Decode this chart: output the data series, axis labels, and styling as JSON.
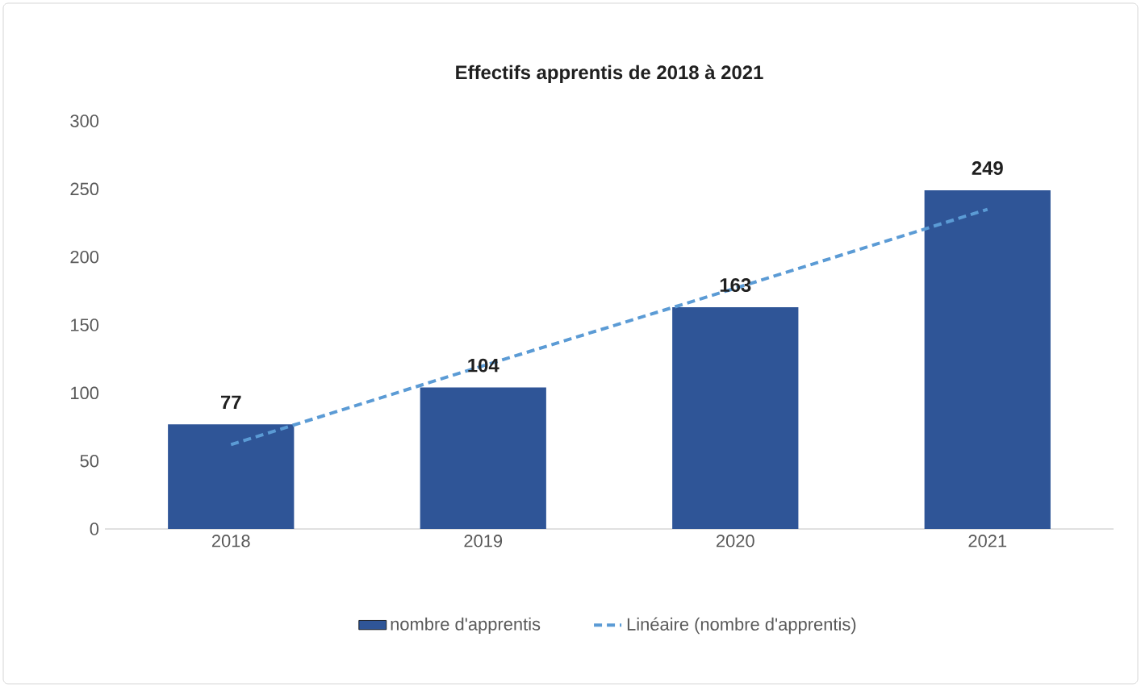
{
  "chart_data": {
    "type": "bar",
    "title": "Effectifs apprentis de 2018 à 2021",
    "categories": [
      "2018",
      "2019",
      "2020",
      "2021"
    ],
    "series": [
      {
        "name": "nombre d'apprentis",
        "color": "#2f5597",
        "values": [
          77,
          104,
          163,
          249
        ],
        "value_labels": [
          "77",
          "104",
          "163",
          "249"
        ]
      },
      {
        "name": "Linéaire (nombre d'apprentis)",
        "type": "line",
        "color": "#5b9bd5",
        "line_style": "dashed",
        "marker": "none",
        "values": [
          62,
          120,
          177,
          235
        ]
      }
    ],
    "ylim": [
      0,
      300
    ],
    "yticks": [
      0,
      50,
      100,
      150,
      200,
      250,
      300
    ],
    "legend": "bottom"
  }
}
